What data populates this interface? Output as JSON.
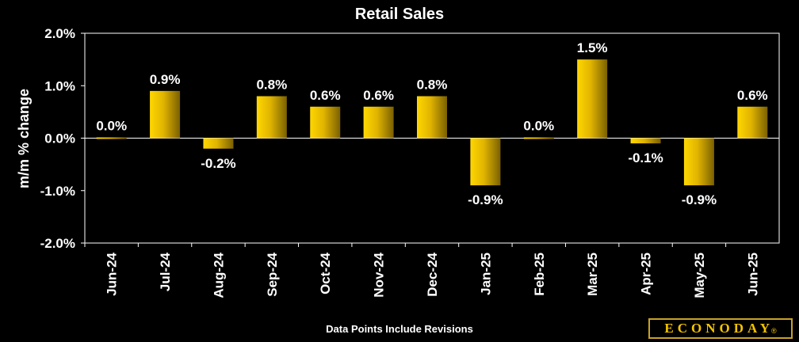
{
  "chart_data": {
    "type": "bar",
    "title": "Retail Sales",
    "ylabel": "m/m % change",
    "xlabel": "",
    "footnote": "Data Points Include Revisions",
    "categories": [
      "Jun-24",
      "Jul-24",
      "Aug-24",
      "Sep-24",
      "Oct-24",
      "Nov-24",
      "Dec-24",
      "Jan-25",
      "Feb-25",
      "Mar-25",
      "Apr-25",
      "May-25",
      "Jun-25"
    ],
    "values": [
      0.0,
      0.9,
      -0.2,
      0.8,
      0.6,
      0.6,
      0.8,
      -0.9,
      0.0,
      1.5,
      -0.1,
      -0.9,
      0.6
    ],
    "data_labels": [
      "0.0%",
      "0.9%",
      "-0.2%",
      "0.8%",
      "0.6%",
      "0.6%",
      "0.8%",
      "-0.9%",
      "0.0%",
      "1.5%",
      "-0.1%",
      "-0.9%",
      "0.6%"
    ],
    "ylim": [
      -2.0,
      2.0
    ],
    "yticks": [
      2.0,
      1.0,
      0.0,
      -1.0,
      -2.0
    ],
    "ytick_labels": [
      "2.0%",
      "1.0%",
      "0.0%",
      "-1.0%",
      "-2.0%"
    ],
    "grid": false,
    "legend": "none",
    "colors": {
      "background": "#000000",
      "bar_light": "#ffd700",
      "bar_dark": "#8a6d00",
      "text": "#ffffff",
      "axis": "#ffffff"
    }
  },
  "branding": {
    "logo_text": "ECONODAY",
    "reg_mark": "®"
  }
}
